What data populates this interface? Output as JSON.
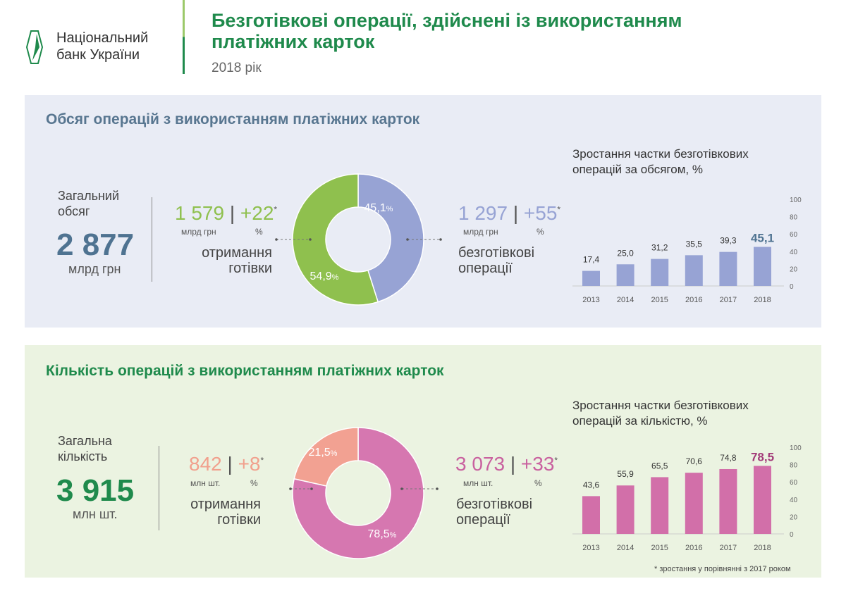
{
  "header": {
    "logo_line1": "Національний",
    "logo_line2": "банк України",
    "title_line1": "Безготівкові операції, здійснені із використанням",
    "title_line2": "платіжних карток",
    "subtitle": "2018 рік"
  },
  "volume": {
    "title": "Обсяг операцій з використанням платіжних карток",
    "total_label_1": "Загальний",
    "total_label_2": "обсяг",
    "total_value": "2 877",
    "total_unit": "млрд грн",
    "cash": {
      "value": "1 579",
      "change": "+22",
      "star": "*",
      "unit": "млрд грн",
      "pct_unit": "%",
      "label_1": "отримання",
      "label_2": "готівки",
      "share": 54.9,
      "share_label": "54,9",
      "color": "#8fc04e"
    },
    "noncash": {
      "value": "1 297",
      "change": "+55",
      "star": "*",
      "unit": "млрд грн",
      "pct_unit": "%",
      "label_1": "безготівкові",
      "label_2": "операції",
      "share": 45.1,
      "share_label": "45,1",
      "color": "#97a3d4"
    }
  },
  "count": {
    "title": "Кількість операцій з використанням платіжних карток",
    "total_label_1": "Загальна",
    "total_label_2": "кількість",
    "total_value": "3 915",
    "total_unit": "млн шт.",
    "cash": {
      "value": "842",
      "change": "+8",
      "star": "*",
      "unit": "млн шт.",
      "pct_unit": "%",
      "label_1": "отримання",
      "label_2": "готівки",
      "share": 21.5,
      "share_label": "21,5",
      "color": "#f2a192"
    },
    "noncash": {
      "value": "3 073",
      "change": "+33",
      "star": "*",
      "unit": "млн шт.",
      "pct_unit": "%",
      "label_1": "безготівкові",
      "label_2": "операції",
      "share": 78.5,
      "share_label": "78,5",
      "color": "#d677b0"
    }
  },
  "pct_sign": "%",
  "chart_data": [
    {
      "type": "bar",
      "title": "Зростання частки безготівкових операцій за обсягом, %",
      "title_1": "Зростання частки безготівкових",
      "title_2": "операцій за обсягом, %",
      "categories": [
        "2013",
        "2014",
        "2015",
        "2016",
        "2017",
        "2018"
      ],
      "values": [
        17.4,
        25.0,
        31.2,
        35.5,
        39.3,
        45.1
      ],
      "labels": [
        "17,4",
        "25,0",
        "31,2",
        "35,5",
        "39,3",
        "45,1"
      ],
      "ylim": [
        0,
        100
      ],
      "yticks": [
        "0",
        "20",
        "40",
        "60",
        "80",
        "100"
      ],
      "color": "#97a3d4",
      "highlight_color": "#4f7391"
    },
    {
      "type": "bar",
      "title": "Зростання частки безготівкових операцій за кількістю, %",
      "title_1": "Зростання частки безготівкових",
      "title_2": "операцій за кількістю, %",
      "categories": [
        "2013",
        "2014",
        "2015",
        "2016",
        "2017",
        "2018"
      ],
      "values": [
        43.6,
        55.9,
        65.5,
        70.6,
        74.8,
        78.5
      ],
      "labels": [
        "43,6",
        "55,9",
        "65,5",
        "70,6",
        "74,8",
        "78,5"
      ],
      "ylim": [
        0,
        100
      ],
      "yticks": [
        "0",
        "20",
        "40",
        "60",
        "80",
        "100"
      ],
      "color": "#d26fa9",
      "highlight_color": "#a23a78"
    }
  ],
  "footnote": "* зростання у порівнянні з 2017 роком"
}
